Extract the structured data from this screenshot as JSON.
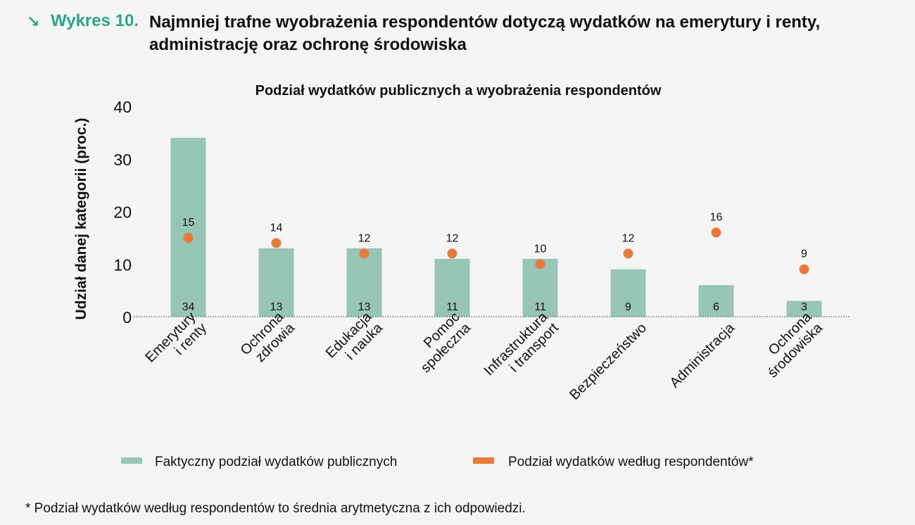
{
  "header": {
    "arrow": "↘",
    "label": "Wykres 10.",
    "title": "Najmniej trafne wyobrażenia respondentów dotyczą wydatków na emerytury i renty, administrację oraz ochronę środowiska"
  },
  "chart_data": {
    "type": "bar",
    "title": "Podział wydatków publicznych a wyobrażenia respondentów",
    "xlabel": "",
    "ylabel": "Udział danej kategorii (proc.)",
    "ylim": [
      0,
      40
    ],
    "yticks": [
      0,
      10,
      20,
      30,
      40
    ],
    "categories": [
      [
        "Emerytury",
        "i renty"
      ],
      [
        "Ochrona",
        "zdrowia"
      ],
      [
        "Edukacja",
        "i nauka"
      ],
      [
        "Pomoc",
        "społeczna"
      ],
      [
        "Infrastruktura",
        "i transport"
      ],
      [
        "Bezpieczeństwo"
      ],
      [
        "Administracja"
      ],
      [
        "Ochrona",
        "środowiska"
      ]
    ],
    "series": [
      {
        "name": "Faktyczny podział wydatków publicznych",
        "kind": "bar",
        "color": "#97c5b6",
        "values": [
          34,
          13,
          13,
          11,
          11,
          9,
          6,
          3
        ]
      },
      {
        "name": "Podział wydatków według respondentów*",
        "kind": "dot",
        "color": "#e97b3a",
        "values": [
          15,
          14,
          12,
          12,
          10,
          12,
          16,
          9
        ]
      }
    ],
    "legend_position": "bottom",
    "grid": false
  },
  "footnote": "* Podział wydatków według respondentów to średnia arytmetyczna z ich odpowiedzi."
}
